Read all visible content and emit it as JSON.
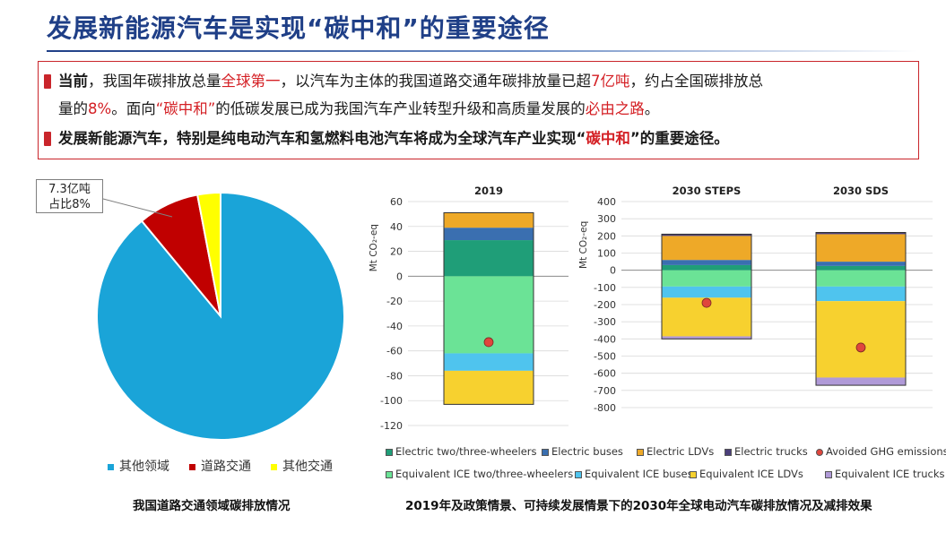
{
  "title": "发展新能源汽车是实现“碳中和”的重要途径",
  "bullets": [
    {
      "lines": [
        [
          {
            "t": "当前",
            "cls": "bold"
          },
          {
            "t": "，我国年碳排放总量",
            "cls": ""
          },
          {
            "t": "全球第一",
            "cls": "red"
          },
          {
            "t": "，以汽车为主体的我国道路交通年碳排放量已超",
            "cls": ""
          },
          {
            "t": "7亿吨",
            "cls": "red"
          },
          {
            "t": "，约占全国碳排放总",
            "cls": ""
          }
        ],
        [
          {
            "t": "量的",
            "cls": ""
          },
          {
            "t": "8%",
            "cls": "red"
          },
          {
            "t": "。面向",
            "cls": ""
          },
          {
            "t": "“碳中和”",
            "cls": "red"
          },
          {
            "t": "的低碳发展已成为我国汽车产业转型升级和高质量发展的",
            "cls": ""
          },
          {
            "t": "必由之路",
            "cls": "red"
          },
          {
            "t": "。",
            "cls": ""
          }
        ]
      ]
    },
    {
      "lines": [
        [
          {
            "t": "发展新能源汽车，特别是纯电动汽车和氢燃料电池汽车将成为全球汽车产业实现“",
            "cls": "bold"
          },
          {
            "t": "碳中和",
            "cls": "bold red"
          },
          {
            "t": "”的重要途径。",
            "cls": "bold"
          }
        ]
      ]
    }
  ],
  "pie": {
    "callout": [
      "7.3亿吨",
      "占比8%"
    ],
    "caption": "我国道路交通领域碳排放情况",
    "legend": [
      {
        "label": "其他领域",
        "color": "#1aa4d8"
      },
      {
        "label": "道路交通",
        "color": "#c00000"
      },
      {
        "label": "其他交通",
        "color": "#ffff00"
      }
    ]
  },
  "chart_data": [
    {
      "type": "pie",
      "slices": [
        {
          "label": "其他领域",
          "value": 89,
          "color": "#1aa4d8"
        },
        {
          "label": "道路交通",
          "value": 8,
          "color": "#c00000"
        },
        {
          "label": "其他交通",
          "value": 3,
          "color": "#ffff00"
        }
      ],
      "annotation": "7.3亿吨 占比8%"
    },
    {
      "type": "bar",
      "stacked": true,
      "ylabel": "Mt CO₂-eq",
      "panels": [
        {
          "title": "2019",
          "ylim": [
            -120,
            60
          ],
          "yticks": [
            60,
            40,
            20,
            0,
            -20,
            -40,
            -60,
            -80,
            -100,
            -120
          ],
          "segments": [
            {
              "series": "Electric two/three-wheelers",
              "from": 0,
              "to": 29
            },
            {
              "series": "Electric buses",
              "from": 29,
              "to": 39
            },
            {
              "series": "Electric LDVs",
              "from": 39,
              "to": 51
            },
            {
              "series": "Equivalent ICE two/three-wheelers",
              "from": 0,
              "to": -62
            },
            {
              "series": "Equivalent ICE buses",
              "from": -62,
              "to": -76
            },
            {
              "series": "Equivalent ICE LDVs",
              "from": -76,
              "to": -103
            }
          ],
          "avoided": -53
        },
        {
          "title": "2030 STEPS",
          "ylim": [
            -800,
            400
          ],
          "yticks": [
            400,
            300,
            200,
            100,
            0,
            -100,
            -200,
            -300,
            -400,
            -500,
            -600,
            -700,
            -800
          ],
          "segments": [
            {
              "series": "Electric two/three-wheelers",
              "from": 0,
              "to": 30
            },
            {
              "series": "Electric buses",
              "from": 30,
              "to": 60
            },
            {
              "series": "Electric LDVs",
              "from": 60,
              "to": 200
            },
            {
              "series": "Electric trucks",
              "from": 200,
              "to": 210
            },
            {
              "series": "Equivalent ICE two/three-wheelers",
              "from": 0,
              "to": -95
            },
            {
              "series": "Equivalent ICE buses",
              "from": -95,
              "to": -160
            },
            {
              "series": "Equivalent ICE LDVs",
              "from": -160,
              "to": -385
            },
            {
              "series": "Equivalent ICE trucks",
              "from": -385,
              "to": -400
            }
          ],
          "avoided": -190
        },
        {
          "title": "2030 SDS",
          "ylim": [
            -800,
            400
          ],
          "yticks": [
            400,
            300,
            200,
            100,
            0,
            -100,
            -200,
            -300,
            -400,
            -500,
            -600,
            -700,
            -800
          ],
          "segments": [
            {
              "series": "Electric two/three-wheelers",
              "from": 0,
              "to": 25
            },
            {
              "series": "Electric buses",
              "from": 25,
              "to": 50
            },
            {
              "series": "Electric LDVs",
              "from": 50,
              "to": 210
            },
            {
              "series": "Electric trucks",
              "from": 210,
              "to": 220
            },
            {
              "series": "Equivalent ICE two/three-wheelers",
              "from": 0,
              "to": -95
            },
            {
              "series": "Equivalent ICE buses",
              "from": -95,
              "to": -180
            },
            {
              "series": "Equivalent ICE LDVs",
              "from": -180,
              "to": -625
            },
            {
              "series": "Equivalent ICE trucks",
              "from": -625,
              "to": -670
            }
          ],
          "avoided": -450
        }
      ],
      "series": [
        {
          "name": "Electric two/three-wheelers",
          "color": "#1f9e78"
        },
        {
          "name": "Electric buses",
          "color": "#3a6fb0"
        },
        {
          "name": "Electric LDVs",
          "color": "#eea928"
        },
        {
          "name": "Electric trucks",
          "color": "#4b3f7a"
        },
        {
          "name": "Avoided GHG emissions",
          "color": "#e0463c",
          "marker": "dot"
        },
        {
          "name": "Equivalent ICE two/three-wheelers",
          "color": "#6be396"
        },
        {
          "name": "Equivalent ICE buses",
          "color": "#4fc4ee"
        },
        {
          "name": "Equivalent ICE LDVs",
          "color": "#f7d12f"
        },
        {
          "name": "Equivalent ICE trucks",
          "color": "#b09ad8"
        }
      ],
      "caption": "2019年及政策情景、可持续发展情景下的2030年全球电动汽车碳排放情况及减排效果"
    }
  ]
}
